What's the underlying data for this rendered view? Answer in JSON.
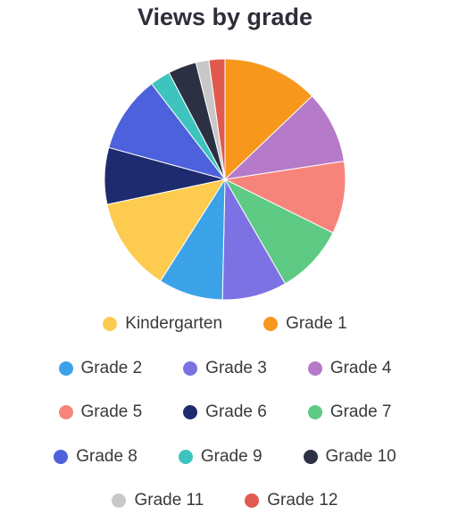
{
  "chart_data": {
    "type": "pie",
    "title": "Views by grade",
    "start": "top",
    "direction": "clockwise",
    "legend_position": "bottom",
    "slices": [
      {
        "label": "Grade 1",
        "value": 13.2,
        "color": "#F7981D"
      },
      {
        "label": "Grade 4",
        "value": 10.0,
        "color": "#B57AC9"
      },
      {
        "label": "Grade 5",
        "value": 10.0,
        "color": "#F7847B"
      },
      {
        "label": "Grade 7",
        "value": 9.6,
        "color": "#5ECA84"
      },
      {
        "label": "Grade 3",
        "value": 8.9,
        "color": "#7C72E3"
      },
      {
        "label": "Grade 2",
        "value": 8.9,
        "color": "#3BA2E8"
      },
      {
        "label": "Kindergarten",
        "value": 13.0,
        "color": "#FCCB50"
      },
      {
        "label": "Grade 6",
        "value": 7.8,
        "color": "#1E2B6F"
      },
      {
        "label": "Grade 8",
        "value": 10.6,
        "color": "#4C61DB"
      },
      {
        "label": "Grade 9",
        "value": 2.8,
        "color": "#3EC4BE"
      },
      {
        "label": "Grade 10",
        "value": 3.9,
        "color": "#2B3142"
      },
      {
        "label": "Grade 11",
        "value": 1.8,
        "color": "#C8C8C8"
      },
      {
        "label": "Grade 12",
        "value": 2.2,
        "color": "#E05A4F"
      }
    ],
    "legend_rows": [
      [
        "Kindergarten",
        "Grade 1"
      ],
      [
        "Grade 2",
        "Grade 3",
        "Grade 4"
      ],
      [
        "Grade 5",
        "Grade 6",
        "Grade 7"
      ],
      [
        "Grade 8",
        "Grade 9",
        "Grade 10"
      ],
      [
        "Grade 11",
        "Grade 12"
      ]
    ]
  }
}
